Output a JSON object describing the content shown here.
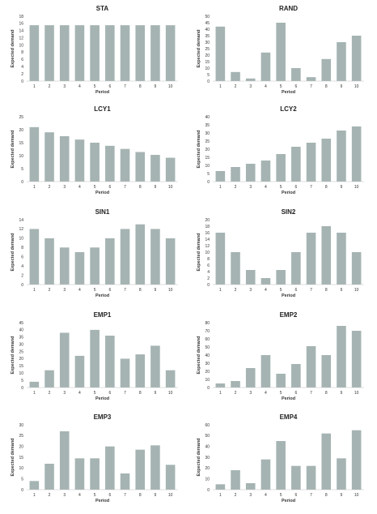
{
  "chart_data": [
    {
      "type": "bar",
      "title": "STA",
      "xlabel": "Period",
      "ylabel": "Expected demand",
      "categories": [
        "1",
        "2",
        "3",
        "4",
        "5",
        "6",
        "7",
        "8",
        "9",
        "10"
      ],
      "values": [
        15.5,
        15.5,
        15.5,
        15.5,
        15.5,
        15.5,
        15.5,
        15.5,
        15.5,
        15.5
      ],
      "ylim": [
        0,
        18
      ],
      "yticks": [
        "0",
        "2",
        "4",
        "6",
        "8",
        "10",
        "12",
        "14",
        "16",
        "18"
      ],
      "grid": false,
      "color": "#a5b4b2"
    },
    {
      "type": "bar",
      "title": "RAND",
      "xlabel": "Period",
      "ylabel": "Expected demand",
      "categories": [
        "1",
        "2",
        "3",
        "4",
        "5",
        "6",
        "7",
        "8",
        "9",
        "10"
      ],
      "values": [
        42,
        7,
        2,
        22,
        45,
        10,
        3,
        17,
        30,
        35
      ],
      "ylim": [
        0,
        50
      ],
      "yticks": [
        "0",
        "5",
        "10",
        "15",
        "20",
        "25",
        "30",
        "35",
        "40",
        "45",
        "50"
      ],
      "grid": false,
      "color": "#a5b4b2"
    },
    {
      "type": "bar",
      "title": "LCY1",
      "xlabel": "Period",
      "ylabel": "Expected demand",
      "categories": [
        "1",
        "2",
        "3",
        "4",
        "5",
        "6",
        "7",
        "8",
        "9",
        "10"
      ],
      "values": [
        21,
        19,
        17.5,
        16.2,
        15,
        13.8,
        12.6,
        11.4,
        10.3,
        9.2
      ],
      "ylim": [
        0,
        25
      ],
      "yticks": [
        "0",
        "5",
        "10",
        "15",
        "20",
        "25"
      ],
      "grid": false,
      "color": "#a5b4b2"
    },
    {
      "type": "bar",
      "title": "LCY2",
      "xlabel": "Period",
      "ylabel": "Expected demand",
      "categories": [
        "1",
        "2",
        "3",
        "4",
        "5",
        "6",
        "7",
        "8",
        "9",
        "10"
      ],
      "values": [
        6.5,
        9,
        11,
        13,
        17,
        21.5,
        24,
        26.5,
        31.5,
        34
      ],
      "ylim": [
        0,
        40
      ],
      "yticks": [
        "0",
        "5",
        "10",
        "15",
        "20",
        "25",
        "30",
        "35",
        "40"
      ],
      "grid": false,
      "color": "#a5b4b2"
    },
    {
      "type": "bar",
      "title": "SIN1",
      "xlabel": "Period",
      "ylabel": "Expected demand",
      "categories": [
        "1",
        "2",
        "3",
        "4",
        "5",
        "6",
        "7",
        "8",
        "9",
        "10"
      ],
      "values": [
        12,
        10,
        8,
        7,
        8,
        10,
        12,
        13,
        12,
        10
      ],
      "ylim": [
        0,
        14
      ],
      "yticks": [
        "0",
        "2",
        "4",
        "6",
        "8",
        "10",
        "12",
        "14"
      ],
      "grid": false,
      "color": "#a5b4b2"
    },
    {
      "type": "bar",
      "title": "SIN2",
      "xlabel": "Period",
      "ylabel": "Expected demand",
      "categories": [
        "1",
        "2",
        "3",
        "4",
        "5",
        "6",
        "7",
        "8",
        "9",
        "10"
      ],
      "values": [
        16,
        10,
        4.5,
        2,
        4.5,
        10,
        16,
        18,
        16,
        10
      ],
      "ylim": [
        0,
        20
      ],
      "yticks": [
        "0",
        "2",
        "4",
        "6",
        "8",
        "10",
        "12",
        "14",
        "16",
        "18",
        "20"
      ],
      "grid": false,
      "color": "#a5b4b2"
    },
    {
      "type": "bar",
      "title": "EMP1",
      "xlabel": "Period",
      "ylabel": "Expected demand",
      "categories": [
        "1",
        "2",
        "3",
        "4",
        "5",
        "6",
        "7",
        "8",
        "9",
        "10"
      ],
      "values": [
        4,
        12,
        38,
        22,
        40,
        36,
        20,
        23,
        29,
        12
      ],
      "ylim": [
        0,
        45
      ],
      "yticks": [
        "0",
        "5",
        "10",
        "15",
        "20",
        "25",
        "30",
        "35",
        "40",
        "45"
      ],
      "grid": false,
      "color": "#a5b4b2"
    },
    {
      "type": "bar",
      "title": "EMP2",
      "xlabel": "Period",
      "ylabel": "Expected demand",
      "categories": [
        "1",
        "2",
        "3",
        "4",
        "5",
        "6",
        "7",
        "8",
        "9",
        "10"
      ],
      "values": [
        5,
        8,
        24,
        40,
        17,
        29,
        51,
        40,
        76,
        70
      ],
      "ylim": [
        0,
        80
      ],
      "yticks": [
        "0",
        "10",
        "20",
        "30",
        "40",
        "50",
        "60",
        "70",
        "80"
      ],
      "grid": false,
      "color": "#a5b4b2"
    },
    {
      "type": "bar",
      "title": "EMP3",
      "xlabel": "Period",
      "ylabel": "Expected demand",
      "categories": [
        "1",
        "2",
        "3",
        "4",
        "5",
        "6",
        "7",
        "8",
        "9",
        "10"
      ],
      "values": [
        4,
        12,
        27,
        14.5,
        14.5,
        20,
        7.5,
        18.5,
        20.5,
        11.5
      ],
      "ylim": [
        0,
        30
      ],
      "yticks": [
        "0",
        "5",
        "10",
        "15",
        "20",
        "25",
        "30"
      ],
      "grid": false,
      "color": "#a5b4b2"
    },
    {
      "type": "bar",
      "title": "EMP4",
      "xlabel": "Period",
      "ylabel": "Expected demand",
      "categories": [
        "1",
        "2",
        "3",
        "4",
        "5",
        "6",
        "7",
        "8",
        "9",
        "10"
      ],
      "values": [
        5,
        18,
        6,
        28,
        45,
        22,
        22,
        52,
        29,
        55
      ],
      "ylim": [
        0,
        60
      ],
      "yticks": [
        "0",
        "10",
        "20",
        "30",
        "40",
        "50",
        "60"
      ],
      "grid": false,
      "color": "#a5b4b2"
    }
  ]
}
